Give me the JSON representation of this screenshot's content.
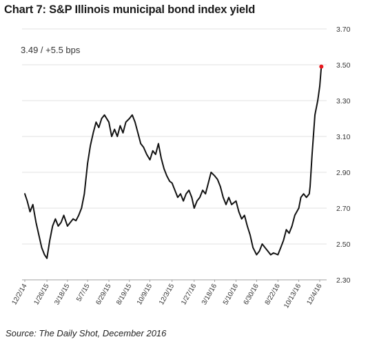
{
  "chart_data": {
    "type": "line",
    "title": "Chart 7:  S&P Illinois municipal bond index yield",
    "annotation": "3.49  /  +5.5 bps",
    "source": "Source:  The Daily Shot, December 2016",
    "xlabel": "",
    "ylabel": "",
    "ylim": [
      2.3,
      3.7
    ],
    "yticks": [
      "3.70",
      "3.50",
      "3.30",
      "3.10",
      "2.90",
      "2.70",
      "2.50",
      "2.30"
    ],
    "x_tick_labels": [
      "12/2/14",
      "1/26/15",
      "3/18/15",
      "5/7/15",
      "6/29/15",
      "8/19/15",
      "10/9/15",
      "12/3/15",
      "1/27/16",
      "3/18/16",
      "5/10/16",
      "6/30/16",
      "8/22/16",
      "10/13/16",
      "12/4/16"
    ],
    "grid": "horizontal",
    "line_color": "#111111",
    "endpoint_color": "#e8191e",
    "series": [
      {
        "x": [
          "2014-12-02",
          "2014-12-08",
          "2014-12-15",
          "2014-12-22",
          "2014-12-30",
          "2015-01-06",
          "2015-01-13",
          "2015-01-20",
          "2015-01-26",
          "2015-02-02",
          "2015-02-09",
          "2015-02-16",
          "2015-02-23",
          "2015-03-02",
          "2015-03-09",
          "2015-03-18",
          "2015-03-25",
          "2015-04-01",
          "2015-04-08",
          "2015-04-15",
          "2015-04-22",
          "2015-04-29",
          "2015-05-07",
          "2015-05-14",
          "2015-05-21",
          "2015-05-28",
          "2015-06-04",
          "2015-06-11",
          "2015-06-18",
          "2015-06-29",
          "2015-07-06",
          "2015-07-13",
          "2015-07-20",
          "2015-07-27",
          "2015-08-03",
          "2015-08-10",
          "2015-08-19",
          "2015-08-26",
          "2015-09-02",
          "2015-09-09",
          "2015-09-16",
          "2015-09-23",
          "2015-10-01",
          "2015-10-09",
          "2015-10-16",
          "2015-10-23",
          "2015-10-30",
          "2015-11-06",
          "2015-11-13",
          "2015-11-20",
          "2015-11-27",
          "2015-12-03",
          "2015-12-10",
          "2015-12-17",
          "2015-12-24",
          "2015-12-31",
          "2016-01-07",
          "2016-01-14",
          "2016-01-21",
          "2016-01-27",
          "2016-02-03",
          "2016-02-10",
          "2016-02-17",
          "2016-02-24",
          "2016-03-02",
          "2016-03-09",
          "2016-03-18",
          "2016-03-25",
          "2016-04-01",
          "2016-04-08",
          "2016-04-15",
          "2016-04-22",
          "2016-04-29",
          "2016-05-10",
          "2016-05-17",
          "2016-05-24",
          "2016-05-31",
          "2016-06-07",
          "2016-06-14",
          "2016-06-21",
          "2016-06-30",
          "2016-07-07",
          "2016-07-14",
          "2016-07-21",
          "2016-07-28",
          "2016-08-04",
          "2016-08-11",
          "2016-08-22",
          "2016-08-29",
          "2016-09-05",
          "2016-09-12",
          "2016-09-19",
          "2016-09-26",
          "2016-10-03",
          "2016-10-13",
          "2016-10-18",
          "2016-10-25",
          "2016-11-01",
          "2016-11-08",
          "2016-11-10",
          "2016-11-15",
          "2016-11-22",
          "2016-11-29",
          "2016-12-04",
          "2016-12-08"
        ],
        "y": [
          2.78,
          2.74,
          2.68,
          2.72,
          2.62,
          2.55,
          2.48,
          2.44,
          2.42,
          2.52,
          2.6,
          2.64,
          2.6,
          2.62,
          2.66,
          2.6,
          2.62,
          2.64,
          2.63,
          2.66,
          2.7,
          2.78,
          2.95,
          3.05,
          3.12,
          3.18,
          3.15,
          3.2,
          3.22,
          3.18,
          3.1,
          3.14,
          3.1,
          3.16,
          3.12,
          3.18,
          3.2,
          3.22,
          3.18,
          3.12,
          3.06,
          3.04,
          3.0,
          2.97,
          3.02,
          3.0,
          3.06,
          2.98,
          2.92,
          2.88,
          2.85,
          2.84,
          2.8,
          2.76,
          2.78,
          2.74,
          2.78,
          2.8,
          2.76,
          2.7,
          2.74,
          2.76,
          2.8,
          2.78,
          2.84,
          2.9,
          2.88,
          2.86,
          2.82,
          2.76,
          2.72,
          2.76,
          2.72,
          2.74,
          2.68,
          2.64,
          2.66,
          2.6,
          2.55,
          2.48,
          2.44,
          2.46,
          2.5,
          2.48,
          2.46,
          2.44,
          2.45,
          2.44,
          2.48,
          2.52,
          2.58,
          2.56,
          2.6,
          2.66,
          2.7,
          2.76,
          2.78,
          2.76,
          2.78,
          2.82,
          3.0,
          3.22,
          3.3,
          3.38,
          3.49
        ]
      }
    ]
  }
}
